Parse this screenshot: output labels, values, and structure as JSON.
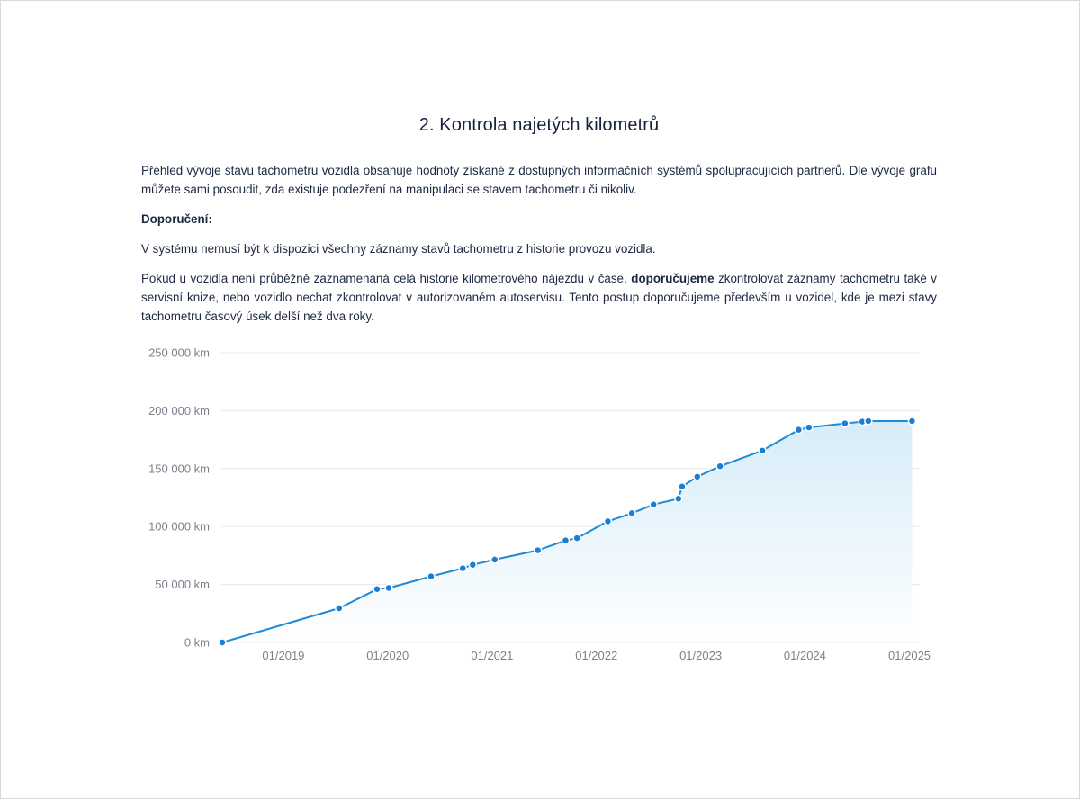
{
  "section": {
    "title": "2. Kontrola najetých kilometrů",
    "intro": "Přehled vývoje stavu tachometru vozidla obsahuje hodnoty získané z dostupných informačních systémů spolupracujících partnerů. Dle vývoje grafu můžete sami posoudit, zda existuje podezření na manipulaci se stavem tachometru či nikoliv.",
    "recommendation_heading": "Doporučení:",
    "note": "V systému nemusí být k dispozici všechny záznamy stavů tachometru z historie provozu vozidla.",
    "advice_before": "Pokud u vozidla není průběžně zaznamenaná celá historie kilometrového nájezdu v čase, ",
    "advice_bold": "doporučujeme",
    "advice_after": " zkontrolovat záznamy tachometru také v servisní knize, nebo vozidlo nechat zkontrolovat v autorizovaném autoservisu. Tento postup doporučujeme především u vozidel, kde je mezi stavy tachometru časový úsek delší než dva roky."
  },
  "colors": {
    "line": "#1f8ad6",
    "point": "#1a7fd4",
    "area_top": "#cfe9f8",
    "grid": "#e6e8eb"
  },
  "chart_data": {
    "type": "area",
    "y_ticks": [
      {
        "value": 0,
        "label": "0 km"
      },
      {
        "value": 50000,
        "label": "50 000 km"
      },
      {
        "value": 100000,
        "label": "100 000 km"
      },
      {
        "value": 150000,
        "label": "150 000 km"
      },
      {
        "value": 200000,
        "label": "200 000 km"
      },
      {
        "value": 250000,
        "label": "250 000 km"
      }
    ],
    "ylim": [
      0,
      250000
    ],
    "xlim": [
      "2018-06-01",
      "2025-01-15"
    ],
    "x_ticks": [
      {
        "value": "2019-01-01",
        "label": "01/2019"
      },
      {
        "value": "2020-01-01",
        "label": "01/2020"
      },
      {
        "value": "2021-01-01",
        "label": "01/2021"
      },
      {
        "value": "2022-01-01",
        "label": "01/2022"
      },
      {
        "value": "2023-01-01",
        "label": "01/2023"
      },
      {
        "value": "2024-01-01",
        "label": "01/2024"
      },
      {
        "value": "2025-01-01",
        "label": "01/2025"
      }
    ],
    "grid": true,
    "points": [
      {
        "x": "2018-06-01",
        "y": 0
      },
      {
        "x": "2019-07-15",
        "y": 29500
      },
      {
        "x": "2019-11-25",
        "y": 46000
      },
      {
        "x": "2020-01-05",
        "y": 47000
      },
      {
        "x": "2020-06-01",
        "y": 57000
      },
      {
        "x": "2020-09-20",
        "y": 64000
      },
      {
        "x": "2020-10-25",
        "y": 67000
      },
      {
        "x": "2021-01-10",
        "y": 71500
      },
      {
        "x": "2021-06-10",
        "y": 79500
      },
      {
        "x": "2021-09-15",
        "y": 88000
      },
      {
        "x": "2021-10-25",
        "y": 90000
      },
      {
        "x": "2022-02-10",
        "y": 104500
      },
      {
        "x": "2022-05-05",
        "y": 111500
      },
      {
        "x": "2022-07-20",
        "y": 119000
      },
      {
        "x": "2022-10-15",
        "y": 124000
      },
      {
        "x": "2022-10-28",
        "y": 134500
      },
      {
        "x": "2022-12-20",
        "y": 143000
      },
      {
        "x": "2023-03-10",
        "y": 152000
      },
      {
        "x": "2023-08-05",
        "y": 165500
      },
      {
        "x": "2023-12-10",
        "y": 183500
      },
      {
        "x": "2024-01-15",
        "y": 185500
      },
      {
        "x": "2024-05-20",
        "y": 189000
      },
      {
        "x": "2024-07-20",
        "y": 190500
      },
      {
        "x": "2024-08-10",
        "y": 191000
      },
      {
        "x": "2025-01-10",
        "y": 191000
      }
    ]
  }
}
